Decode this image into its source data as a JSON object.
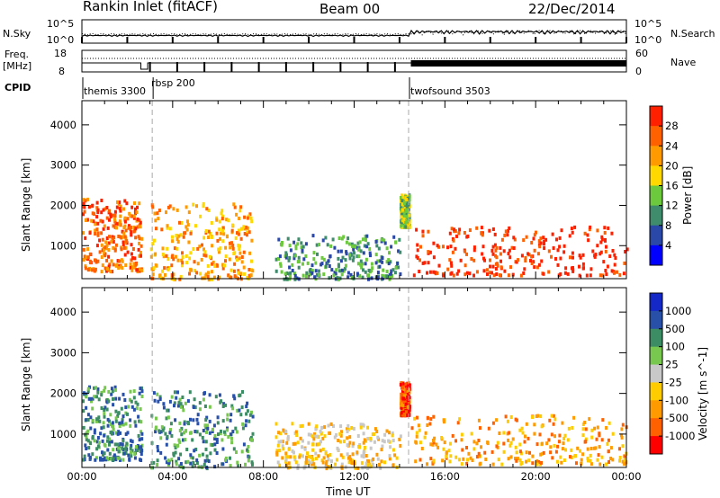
{
  "header": {
    "station": "Rankin Inlet (fitACF)",
    "beam": "Beam 00",
    "date": "22/Dec/2014"
  },
  "noise_panel": {
    "left_label": "N.Sky",
    "right_label": "N.Search",
    "left_ticks": [
      "10^5",
      "10^0"
    ],
    "right_ticks": [
      "10^5",
      "10^0"
    ]
  },
  "freq_panel": {
    "left_label_1": "Freq.",
    "left_label_2": "[MHz]",
    "right_label": "Nave",
    "left_ticks": [
      "18",
      "8"
    ],
    "right_ticks": [
      "60",
      "0"
    ]
  },
  "cpid": {
    "label": "CPID",
    "modes": [
      "themis 3300",
      "rbsp 200",
      "twofsound 3503"
    ]
  },
  "colors": {
    "power": [
      "#0000ff",
      "#2a48a8",
      "#3e8c6c",
      "#6cc83c",
      "#ffd800",
      "#ff9a00",
      "#ff6000",
      "#ff2000"
    ],
    "velocity": [
      "#ff0000",
      "#ff6000",
      "#ff9a00",
      "#ffcc00",
      "#c8c8c8",
      "#78c850",
      "#3c8c64",
      "#2850a8",
      "#1428c8"
    ]
  },
  "chart_data": [
    {
      "type": "heatmap",
      "quantity": "Power",
      "ylabel": "Slant Range [km]",
      "colorbar_label": "Power [dB]",
      "colorbar_ticks": [
        "28",
        "24",
        "20",
        "16",
        "12",
        "8",
        "4"
      ],
      "ylim": [
        180,
        4600
      ],
      "yticks": [
        "4000",
        "3000",
        "2000",
        "1000"
      ],
      "xlim": [
        "00:00",
        "24:00"
      ],
      "xticks": [
        "00:00",
        "04:00",
        "08:00",
        "12:00",
        "16:00",
        "20:00",
        "00:00"
      ],
      "regions": [
        {
          "t": [
            0.0,
            2.6
          ],
          "r": [
            400,
            2200
          ],
          "level": 6
        },
        {
          "t": [
            3.0,
            7.5
          ],
          "r": [
            200,
            2100
          ],
          "level": 5
        },
        {
          "t": [
            8.5,
            14.0
          ],
          "r": [
            200,
            1300
          ],
          "level": 2
        },
        {
          "t": [
            14.0,
            14.4
          ],
          "r": [
            1500,
            2300
          ],
          "level": 3
        },
        {
          "t": [
            14.5,
            24.0
          ],
          "r": [
            300,
            1500
          ],
          "level": 7
        }
      ]
    },
    {
      "type": "heatmap",
      "quantity": "Velocity",
      "ylabel": "Slant Range [km]",
      "xlabel": "Time UT",
      "colorbar_label": "Velocity [m s^-1]",
      "colorbar_ticks": [
        "1000",
        "500",
        "100",
        "25",
        "-25",
        "-100",
        "-500",
        "-1000"
      ],
      "ylim": [
        180,
        4600
      ],
      "yticks": [
        "4000",
        "3000",
        "2000",
        "1000"
      ],
      "xlim": [
        "00:00",
        "24:00"
      ],
      "xticks": [
        "00:00",
        "04:00",
        "08:00",
        "12:00",
        "16:00",
        "20:00",
        "00:00"
      ],
      "regions": [
        {
          "t": [
            0.0,
            2.6
          ],
          "r": [
            400,
            2200
          ],
          "level": 6
        },
        {
          "t": [
            3.0,
            7.5
          ],
          "r": [
            200,
            2100
          ],
          "level": 6
        },
        {
          "t": [
            8.5,
            14.0
          ],
          "r": [
            200,
            1300
          ],
          "level": 3
        },
        {
          "t": [
            14.0,
            14.4
          ],
          "r": [
            1500,
            2300
          ],
          "level": 1
        },
        {
          "t": [
            14.5,
            24.0
          ],
          "r": [
            300,
            1500
          ],
          "level": 2
        }
      ]
    }
  ]
}
